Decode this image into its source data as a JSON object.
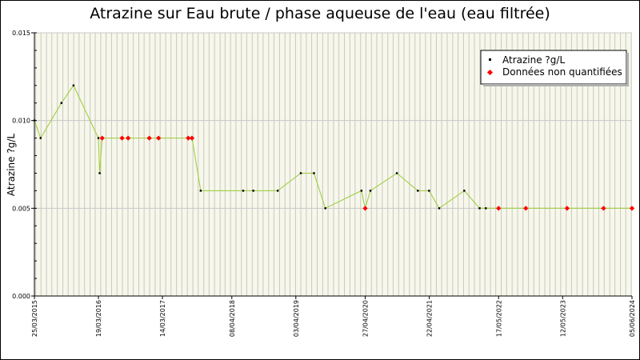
{
  "chart_data": {
    "type": "line",
    "title": "Atrazine sur Eau brute / phase aqueuse de l'eau (eau filtrée)",
    "ylabel": "Atrazine ?g/L",
    "xlabel": "",
    "ylim": [
      0,
      0.015
    ],
    "xlim": [
      "2015-03-25",
      "2024-06-05"
    ],
    "yticks": [
      "0.000",
      "0.005",
      "0.010",
      "0.015"
    ],
    "xticks": [
      {
        "date": "2015-03-25",
        "label": "25/03/2015"
      },
      {
        "date": "2016-03-19",
        "label": "19/03/2016"
      },
      {
        "date": "2017-03-14",
        "label": "14/03/2017"
      },
      {
        "date": "2018-04-08",
        "label": "08/04/2018"
      },
      {
        "date": "2019-04-03",
        "label": "03/04/2019"
      },
      {
        "date": "2020-04-27",
        "label": "27/04/2020"
      },
      {
        "date": "2021-04-22",
        "label": "22/04/2021"
      },
      {
        "date": "2022-05-17",
        "label": "17/05/2022"
      },
      {
        "date": "2023-05-12",
        "label": "12/05/2023"
      },
      {
        "date": "2024-06-05",
        "label": "05/06/2024"
      }
    ],
    "grid": true,
    "legend_position": "top-right",
    "colors": {
      "line": "#99cc33",
      "quantified": "#000000",
      "non_quantified": "#ff0000",
      "grid": "#c8c8c8",
      "background": "#f7f7ea"
    },
    "series": [
      {
        "name": "Atrazine ?g/L",
        "points": [
          {
            "x": "2015-03-25",
            "y": 0.01,
            "q": true
          },
          {
            "x": "2015-04-29",
            "y": 0.009,
            "q": true
          },
          {
            "x": "2015-08-24",
            "y": 0.011,
            "q": true
          },
          {
            "x": "2015-10-31",
            "y": 0.012,
            "q": true
          },
          {
            "x": "2016-03-19",
            "y": 0.009,
            "q": true
          },
          {
            "x": "2016-03-26",
            "y": 0.007,
            "q": true
          },
          {
            "x": "2016-04-09",
            "y": 0.009,
            "q": false
          },
          {
            "x": "2016-07-30",
            "y": 0.009,
            "q": false
          },
          {
            "x": "2016-09-02",
            "y": 0.009,
            "q": false
          },
          {
            "x": "2016-12-30",
            "y": 0.009,
            "q": false
          },
          {
            "x": "2017-02-20",
            "y": 0.009,
            "q": false
          },
          {
            "x": "2017-08-06",
            "y": 0.009,
            "q": false
          },
          {
            "x": "2017-08-27",
            "y": 0.009,
            "q": false
          },
          {
            "x": "2017-10-15",
            "y": 0.006,
            "q": true
          },
          {
            "x": "2018-06-11",
            "y": 0.006,
            "q": true
          },
          {
            "x": "2018-08-07",
            "y": 0.006,
            "q": true
          },
          {
            "x": "2018-12-22",
            "y": 0.006,
            "q": true
          },
          {
            "x": "2019-05-01",
            "y": 0.007,
            "q": true
          },
          {
            "x": "2019-07-14",
            "y": 0.007,
            "q": true
          },
          {
            "x": "2019-09-16",
            "y": 0.005,
            "q": true
          },
          {
            "x": "2020-04-06",
            "y": 0.006,
            "q": true
          },
          {
            "x": "2020-04-27",
            "y": 0.005,
            "q": false
          },
          {
            "x": "2020-05-26",
            "y": 0.006,
            "q": true
          },
          {
            "x": "2020-10-22",
            "y": 0.007,
            "q": true
          },
          {
            "x": "2021-02-17",
            "y": 0.006,
            "q": true
          },
          {
            "x": "2021-04-21",
            "y": 0.006,
            "q": true
          },
          {
            "x": "2021-06-17",
            "y": 0.005,
            "q": true
          },
          {
            "x": "2021-11-05",
            "y": 0.006,
            "q": true
          },
          {
            "x": "2022-01-30",
            "y": 0.005,
            "q": true
          },
          {
            "x": "2022-03-06",
            "y": 0.005,
            "q": true
          },
          {
            "x": "2022-05-17",
            "y": 0.005,
            "q": false
          },
          {
            "x": "2022-10-17",
            "y": 0.005,
            "q": false
          },
          {
            "x": "2023-06-06",
            "y": 0.005,
            "q": false
          },
          {
            "x": "2023-12-28",
            "y": 0.005,
            "q": false
          },
          {
            "x": "2024-06-05",
            "y": 0.005,
            "q": false
          }
        ]
      }
    ],
    "legend": [
      {
        "label": "Atrazine ?g/L",
        "marker_color": "#000000"
      },
      {
        "label": "Données non quantifiées",
        "marker_color": "#ff0000"
      }
    ]
  }
}
